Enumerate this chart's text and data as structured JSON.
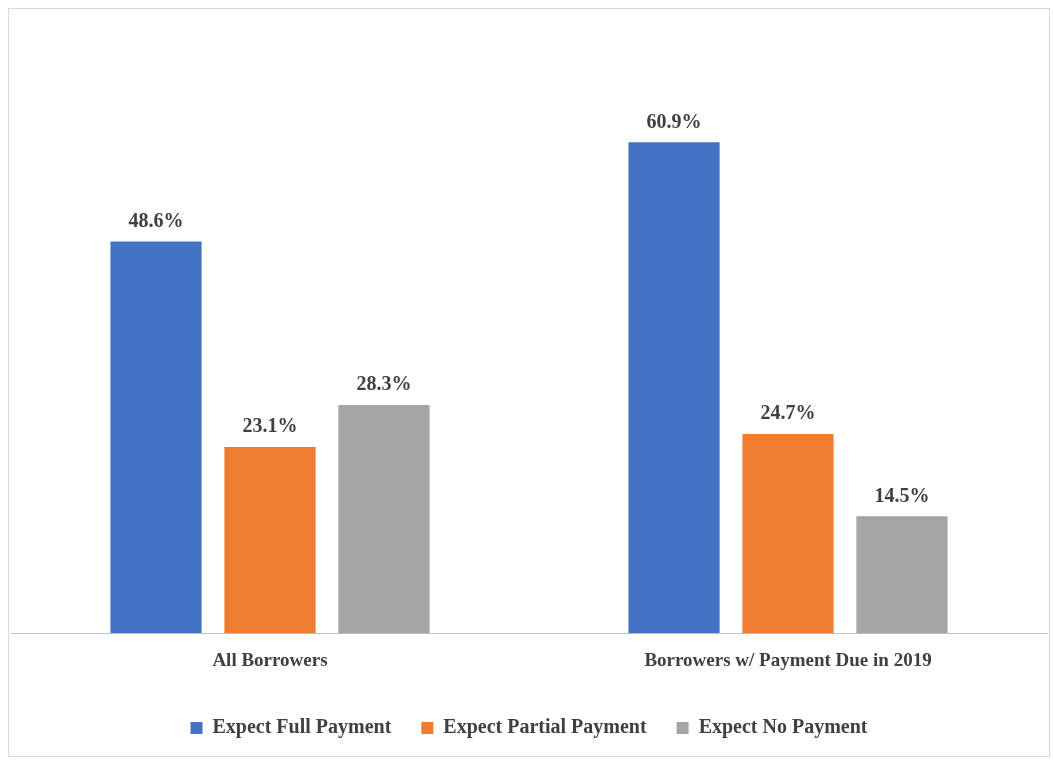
{
  "chart_data": {
    "type": "bar",
    "categories": [
      "All Borrowers",
      "Borrowers w/ Payment Due in 2019"
    ],
    "series": [
      {
        "name": "Expect Full Payment",
        "color": "#4472c4",
        "values": [
          48.6,
          60.9
        ],
        "value_labels": [
          "48.6%",
          "60.9%"
        ]
      },
      {
        "name": "Expect Partial Payment",
        "color": "#ed7d31",
        "values": [
          23.1,
          24.7
        ],
        "value_labels": [
          "23.1%",
          "24.7%"
        ]
      },
      {
        "name": "Expect No Payment",
        "color": "#a5a5a5",
        "values": [
          28.3,
          14.5
        ],
        "value_labels": [
          "28.3%",
          "14.5%"
        ]
      }
    ],
    "legend": "bottom",
    "grid": false
  }
}
